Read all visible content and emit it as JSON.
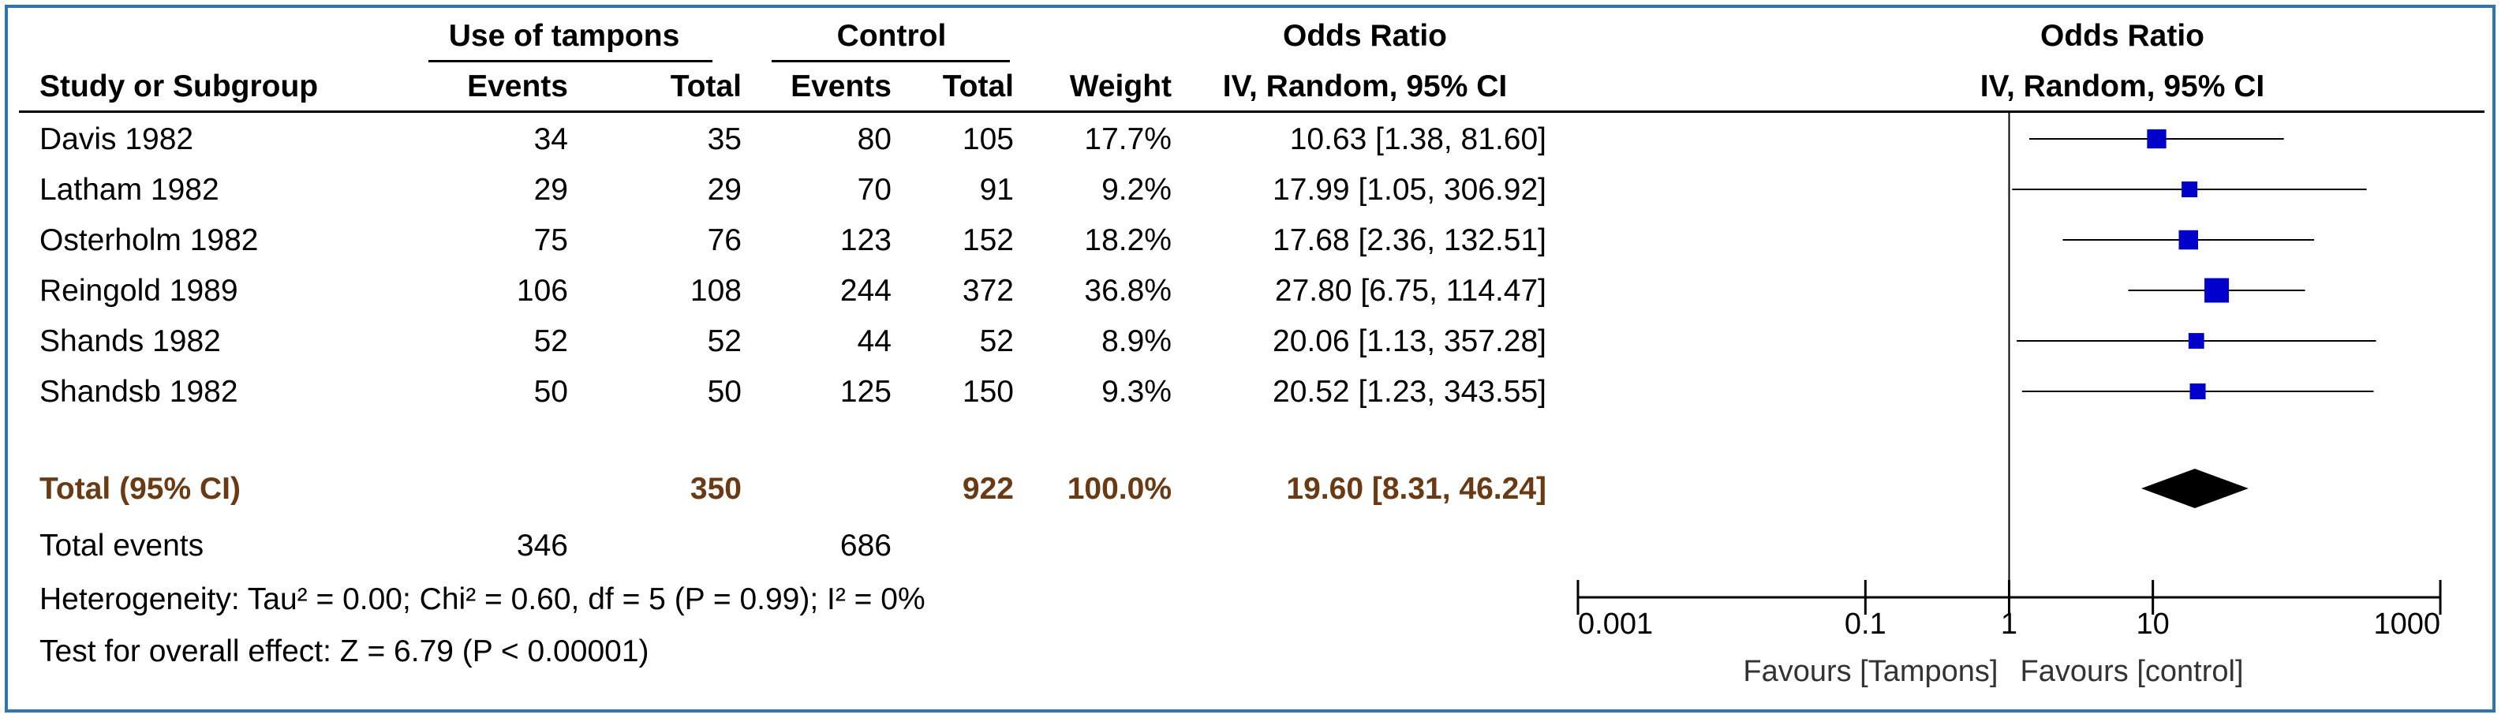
{
  "header": {
    "group1": "Use of tampons",
    "group2": "Control",
    "or_table": "Odds Ratio",
    "or_table_method": "IV, Random, 95% CI",
    "or_plot": "Odds Ratio",
    "or_plot_method": "IV, Random, 95% CI",
    "study": "Study or Subgroup",
    "events1": "Events",
    "total1": "Total",
    "events2": "Events",
    "total2": "Total",
    "weight": "Weight"
  },
  "studies": [
    {
      "name": "Davis 1982",
      "e1": "34",
      "t1": "35",
      "e2": "80",
      "t2": "105",
      "weight": "17.7%",
      "ci": "10.63 [1.38, 81.60]"
    },
    {
      "name": "Latham 1982",
      "e1": "29",
      "t1": "29",
      "e2": "70",
      "t2": "91",
      "weight": "9.2%",
      "ci": "17.99 [1.05, 306.92]"
    },
    {
      "name": "Osterholm 1982",
      "e1": "75",
      "t1": "76",
      "e2": "123",
      "t2": "152",
      "weight": "18.2%",
      "ci": "17.68 [2.36, 132.51]"
    },
    {
      "name": "Reingold 1989",
      "e1": "106",
      "t1": "108",
      "e2": "244",
      "t2": "372",
      "weight": "36.8%",
      "ci": "27.80 [6.75, 114.47]"
    },
    {
      "name": "Shands 1982",
      "e1": "52",
      "t1": "52",
      "e2": "44",
      "t2": "52",
      "weight": "8.9%",
      "ci": "20.06 [1.13, 357.28]"
    },
    {
      "name": "Shandsb 1982",
      "e1": "50",
      "t1": "50",
      "e2": "125",
      "t2": "150",
      "weight": "9.3%",
      "ci": "20.52 [1.23, 343.55]"
    }
  ],
  "total": {
    "label": "Total (95% CI)",
    "t1": "350",
    "t2": "922",
    "weight": "100.0%",
    "ci": "19.60 [8.31, 46.24]"
  },
  "total_events": {
    "label": "Total events",
    "e1": "346",
    "e2": "686"
  },
  "heterogeneity": "Heterogeneity: Tau² = 0.00; Chi² = 0.60, df = 5 (P = 0.99); I² = 0%",
  "overall_effect": "Test for overall effect: Z = 6.79 (P < 0.00001)",
  "axis": {
    "ticks": [
      "0.001",
      "0.1",
      "1",
      "10",
      "1000"
    ],
    "favours_left": "Favours [Tampons]",
    "favours_right": "Favours [control]"
  },
  "colors": {
    "marker": "#0000cc",
    "frame": "#2e75b6",
    "total_text": "#6b3a12"
  },
  "chart_data": {
    "type": "forest",
    "xscale": "log",
    "xlim": [
      0.001,
      1000
    ],
    "ticks": [
      0.001,
      0.1,
      1,
      10,
      1000
    ],
    "studies": [
      {
        "name": "Davis 1982",
        "or": 10.63,
        "lo": 1.38,
        "hi": 81.6,
        "weight": 17.7
      },
      {
        "name": "Latham 1982",
        "or": 17.99,
        "lo": 1.05,
        "hi": 306.92,
        "weight": 9.2
      },
      {
        "name": "Osterholm 1982",
        "or": 17.68,
        "lo": 2.36,
        "hi": 132.51,
        "weight": 18.2
      },
      {
        "name": "Reingold 1989",
        "or": 27.8,
        "lo": 6.75,
        "hi": 114.47,
        "weight": 36.8
      },
      {
        "name": "Shands 1982",
        "or": 20.06,
        "lo": 1.13,
        "hi": 357.28,
        "weight": 8.9
      },
      {
        "name": "Shandsb 1982",
        "or": 20.52,
        "lo": 1.23,
        "hi": 343.55,
        "weight": 9.3
      }
    ],
    "pooled": {
      "or": 19.6,
      "lo": 8.31,
      "hi": 46.24
    }
  }
}
